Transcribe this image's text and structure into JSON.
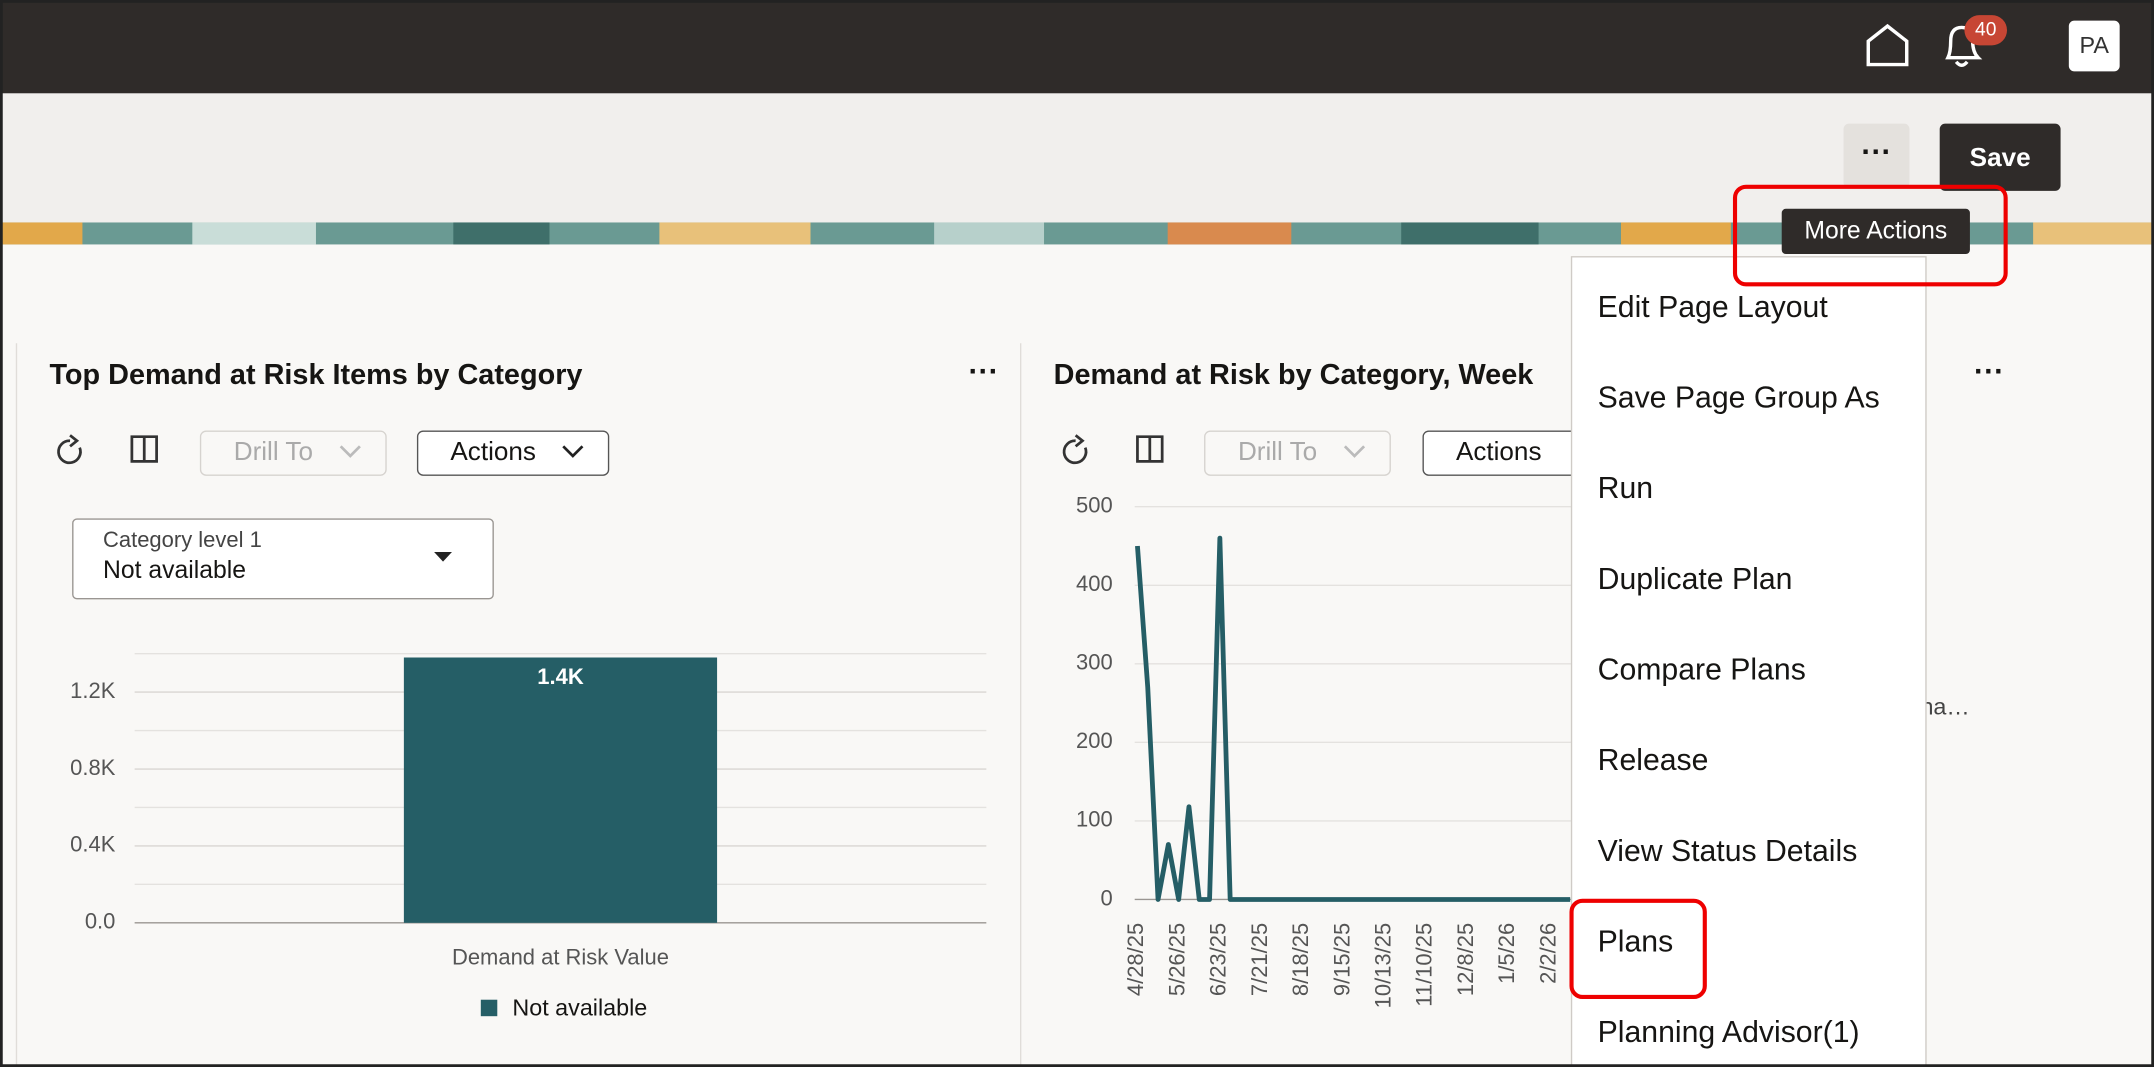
{
  "header": {
    "notification_count": 40,
    "user_initials": "PA"
  },
  "toolbar": {
    "save": "Save",
    "tooltip": "More Actions"
  },
  "panels": [
    {
      "title": "Top Demand at Risk Items by Category",
      "drill_to": "Drill To",
      "actions": "Actions",
      "filter": {
        "label": "Category level 1",
        "value": "Not available"
      }
    },
    {
      "title": "Demand at Risk by Category, Week",
      "drill_to": "Drill To",
      "actions": "Actions",
      "legend_fragment": "na…"
    }
  ],
  "menu": {
    "items": [
      "Edit Page Layout",
      "Save Page Group As",
      "Run",
      "Duplicate Plan",
      "Compare Plans",
      "Release",
      "View Status Details",
      "Plans",
      "Planning Advisor(1)"
    ]
  },
  "chart_data": [
    {
      "type": "bar",
      "categories": [
        "Demand at Risk Value"
      ],
      "series": [
        {
          "name": "Not available",
          "color": "#255e66",
          "values": [
            1380
          ],
          "value_labels": [
            "1.4K"
          ]
        }
      ],
      "ylim": [
        0,
        1400
      ],
      "yticks": [
        {
          "value": 0,
          "label": "0.0"
        },
        {
          "value": 400,
          "label": "0.4K"
        },
        {
          "value": 800,
          "label": "0.8K"
        },
        {
          "value": 1200,
          "label": "1.2K"
        }
      ],
      "minor_grid": [
        200,
        600,
        1000,
        1400
      ],
      "grid": true
    },
    {
      "type": "line",
      "categories": [
        "4/28/25",
        null,
        null,
        null,
        "5/26/25",
        null,
        null,
        null,
        "6/23/25",
        null,
        null,
        null,
        "7/21/25",
        null,
        null,
        null,
        "8/18/25",
        null,
        null,
        null,
        "9/15/25",
        null,
        null,
        null,
        "10/13/25",
        null,
        null,
        null,
        "11/10/25",
        null,
        null,
        null,
        "12/8/25",
        null,
        null,
        null,
        "1/5/26",
        null,
        null,
        null,
        "2/2/26",
        null,
        null
      ],
      "series": [
        {
          "color": "#255e66",
          "values": [
            450,
            270,
            0,
            70,
            0,
            118,
            0,
            0,
            460,
            0,
            0,
            0,
            0,
            0,
            0,
            0,
            0,
            0,
            0,
            0,
            0,
            0,
            0,
            0,
            0,
            0,
            0,
            0,
            0,
            0,
            0,
            0,
            0,
            0,
            0,
            0,
            0,
            0,
            0,
            0,
            0,
            0,
            0
          ]
        }
      ],
      "ylim": [
        0,
        500
      ],
      "yticks": [
        0,
        100,
        200,
        300,
        400,
        500
      ],
      "grid": true
    }
  ]
}
